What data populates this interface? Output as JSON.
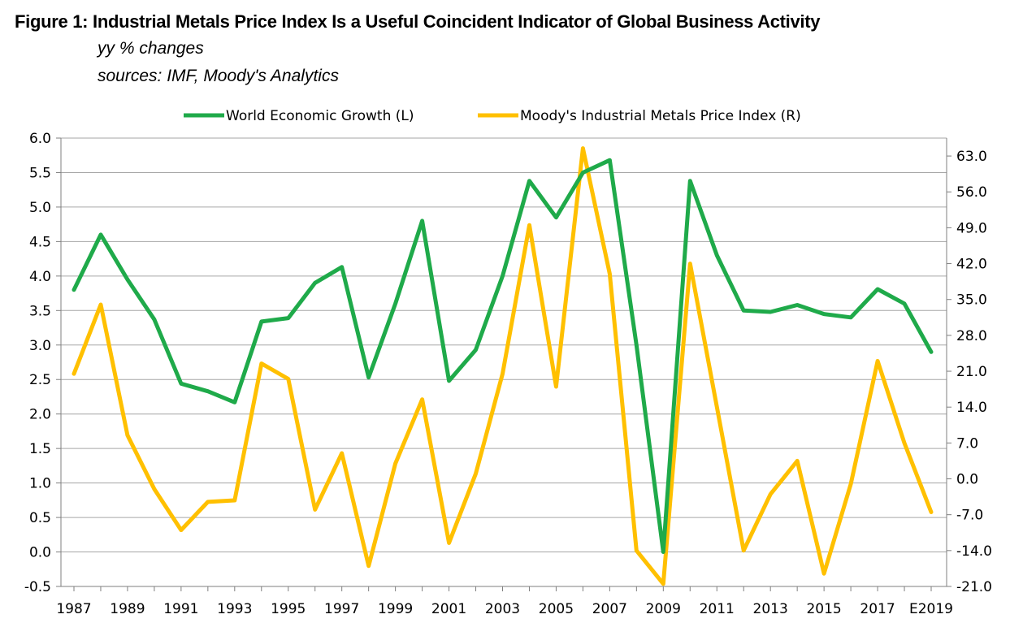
{
  "figure": {
    "title": "Figure 1:  Industrial Metals Price Index Is a Useful Coincident Indicator of Global Business Activity",
    "subtitle1": "yy % changes",
    "subtitle2": "sources: IMF, Moody's Analytics"
  },
  "chart_data": {
    "type": "line",
    "x": [
      "1987",
      "1988",
      "1989",
      "1990",
      "1991",
      "1992",
      "1993",
      "1994",
      "1995",
      "1996",
      "1997",
      "1998",
      "1999",
      "2000",
      "2001",
      "2002",
      "2003",
      "2004",
      "2005",
      "2006",
      "2007",
      "2008",
      "2009",
      "2010",
      "2011",
      "2012",
      "2013",
      "2014",
      "2015",
      "2016",
      "2017",
      "2018",
      "E2019"
    ],
    "x_tick_labels": [
      "1987",
      "1989",
      "1991",
      "1993",
      "1995",
      "1997",
      "1999",
      "2001",
      "2003",
      "2005",
      "2007",
      "2009",
      "2011",
      "2013",
      "2015",
      "2017",
      "E2019"
    ],
    "y_left": {
      "ticks": [
        "6.0",
        "5.5",
        "5.0",
        "4.5",
        "4.0",
        "3.5",
        "3.0",
        "2.5",
        "2.0",
        "1.5",
        "1.0",
        "0.5",
        "0.0",
        "-0.5"
      ],
      "range": [
        -0.5,
        6.0
      ]
    },
    "y_right": {
      "ticks": [
        "63.0",
        "56.0",
        "49.0",
        "42.0",
        "35.0",
        "28.0",
        "21.0",
        "14.0",
        "7.0",
        "0.0",
        "-7.0",
        "-14.0",
        "-21.0"
      ],
      "range": [
        -21.0,
        66.5
      ]
    },
    "grid": true,
    "legend_position": "top",
    "series": [
      {
        "name": "World Economic Growth (L)",
        "axis": "left",
        "color": "#1faa4a",
        "values": [
          3.8,
          4.6,
          3.95,
          3.37,
          2.44,
          2.33,
          2.17,
          3.34,
          3.39,
          3.9,
          4.13,
          2.53,
          3.6,
          4.8,
          2.48,
          2.93,
          4.0,
          5.38,
          4.85,
          5.5,
          5.68,
          3.0,
          0.0,
          5.38,
          4.3,
          3.5,
          3.48,
          3.58,
          3.45,
          3.4,
          3.81,
          3.6,
          2.9
        ]
      },
      {
        "name": "Moody's Industrial Metals Price Index (R)",
        "axis": "right",
        "color": "#ffc000",
        "values": [
          20.5,
          34.0,
          8.5,
          -2.0,
          -10.0,
          -4.5,
          -4.2,
          22.5,
          19.5,
          -6.0,
          5.0,
          -17.0,
          3.0,
          15.5,
          -12.5,
          1.0,
          20.5,
          49.5,
          18.0,
          64.5,
          40.0,
          -14.0,
          -20.5,
          42.0,
          14.0,
          -14.0,
          -3.0,
          3.5,
          -18.5,
          -1.0,
          23.0,
          7.0,
          -6.5
        ]
      }
    ]
  }
}
